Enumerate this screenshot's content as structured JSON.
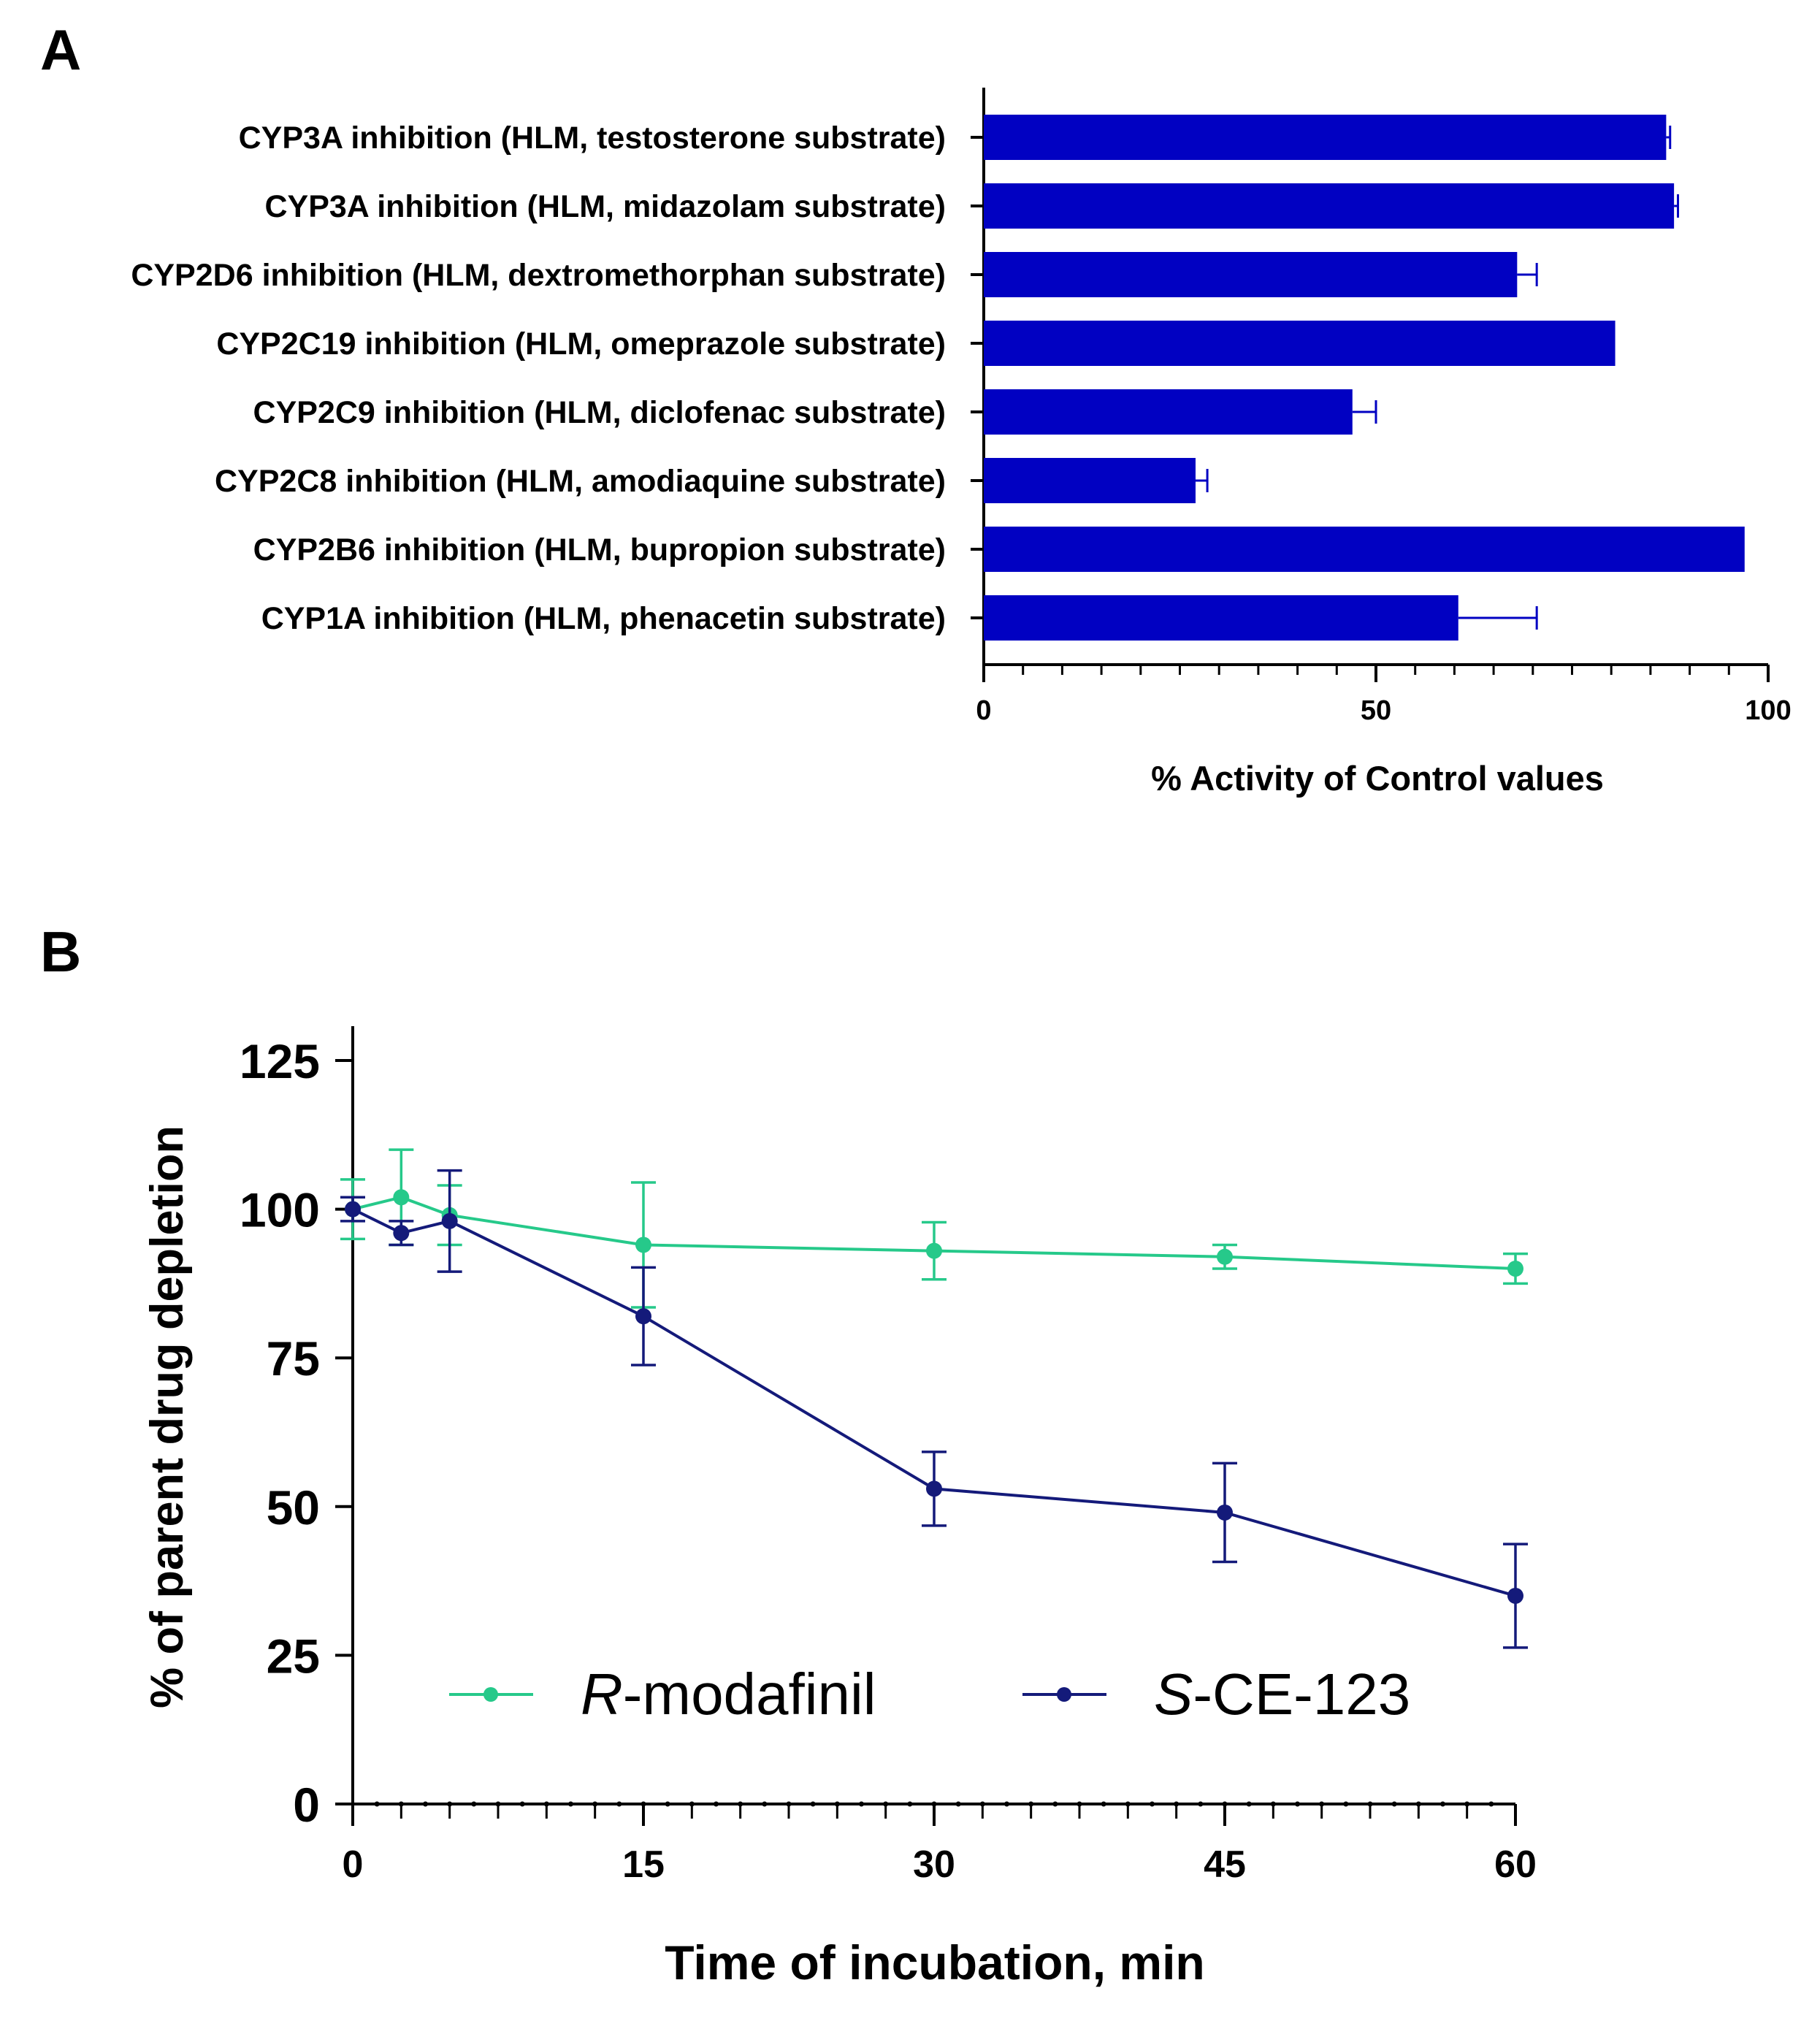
{
  "chart_data": [
    {
      "type": "bar",
      "orientation": "horizontal",
      "panel_label": "A",
      "categories": [
        "CYP3A inhibition (HLM, testosterone substrate)",
        "CYP3A inhibition (HLM, midazolam substrate)",
        "CYP2D6 inhibition (HLM, dextromethorphan substrate)",
        "CYP2C19 inhibition (HLM, omeprazole substrate)",
        "CYP2C9 inhibition (HLM, diclofenac substrate)",
        "CYP2C8 inhibition (HLM, amodiaquine substrate)",
        "CYP2B6 inhibition (HLM, bupropion substrate)",
        "CYP1A inhibition (HLM, phenacetin substrate)"
      ],
      "values": [
        87,
        88,
        68,
        80.5,
        47,
        27,
        97,
        60.5
      ],
      "errors": [
        0.5,
        0.5,
        2.5,
        0,
        3,
        1.5,
        0,
        10
      ],
      "xlabel": "% Activity of Control values",
      "xlim": [
        0,
        100
      ],
      "xticks": [
        "0",
        "50",
        "100"
      ],
      "bar_color": "#0101C2"
    },
    {
      "type": "line",
      "panel_label": "B",
      "x": [
        0,
        2.5,
        5,
        15,
        30,
        45,
        60
      ],
      "series": [
        {
          "name_italic": "R",
          "name_rest": "-modafinil",
          "color": "#26C98A",
          "values": [
            100,
            102,
            99,
            94,
            93,
            92,
            90
          ],
          "errors": [
            5,
            8,
            5,
            10.5,
            4.8,
            2,
            2.5
          ]
        },
        {
          "name_italic": "S",
          "name_rest": "-CE-123",
          "color": "#141A7A",
          "values": [
            100,
            96,
            98,
            82,
            53,
            49,
            35
          ],
          "errors": [
            2,
            2,
            8.5,
            8.2,
            6.2,
            8.3,
            8.7
          ]
        }
      ],
      "xlabel": "Time of incubation, min",
      "ylabel": "% of parent drug depletion",
      "xlim": [
        0,
        60
      ],
      "ylim": [
        0,
        125
      ],
      "xticks": [
        "0",
        "15",
        "30",
        "45",
        "60"
      ],
      "yticks": [
        "0",
        "25",
        "50",
        "75",
        "100",
        "125"
      ]
    }
  ]
}
